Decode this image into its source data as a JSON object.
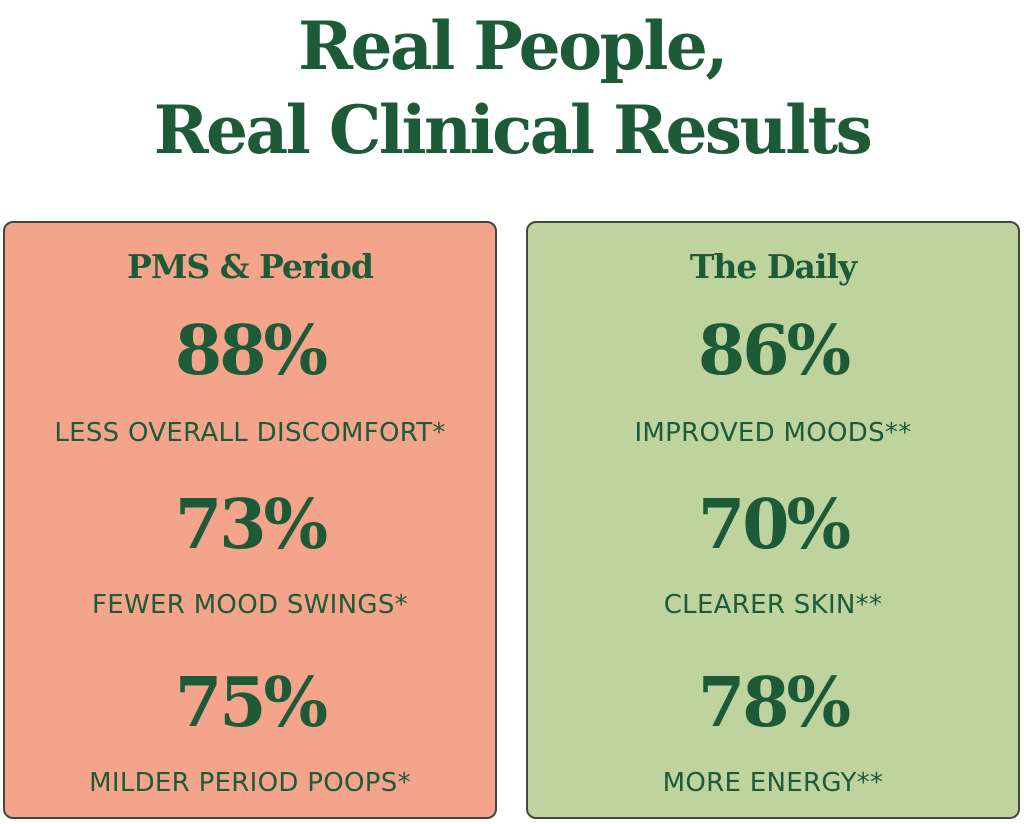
{
  "headline": {
    "line1": "Real People,",
    "line2": "Real Clinical Results"
  },
  "cards": [
    {
      "title": "PMS & Period",
      "background": "#f5a48c",
      "stats": [
        {
          "value": "88%",
          "label": "LESS OVERALL DISCOMFORT*"
        },
        {
          "value": "73%",
          "label": "FEWER MOOD SWINGS*"
        },
        {
          "value": "75%",
          "label": "MILDER PERIOD POOPS*"
        }
      ]
    },
    {
      "title": "The Daily",
      "background": "#bfd39f",
      "stats": [
        {
          "value": "86%",
          "label": "IMPROVED MOODS**"
        },
        {
          "value": "70%",
          "label": "CLEARER SKIN**"
        },
        {
          "value": "78%",
          "label": "MORE ENERGY**"
        }
      ]
    }
  ],
  "colors": {
    "text_green": "#1d5a37",
    "border": "#3f4a3e",
    "page_background": "#ffffff"
  }
}
